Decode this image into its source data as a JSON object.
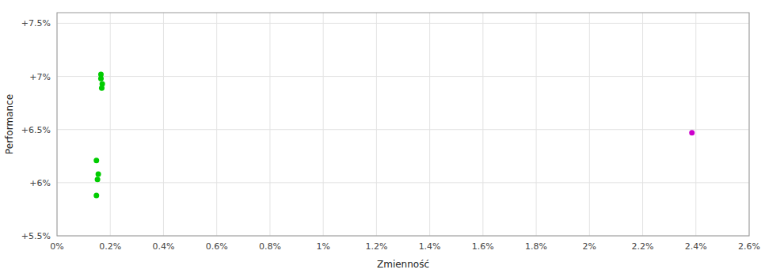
{
  "chart_data": {
    "type": "scatter",
    "xlabel": "Zmienność",
    "ylabel": "Performance",
    "xlim": [
      0.0,
      0.026
    ],
    "ylim": [
      0.055,
      0.076
    ],
    "xticks": [
      {
        "value": 0.0,
        "label": "0%"
      },
      {
        "value": 0.002,
        "label": "0.2%"
      },
      {
        "value": 0.004,
        "label": "0.4%"
      },
      {
        "value": 0.006,
        "label": "0.6%"
      },
      {
        "value": 0.008,
        "label": "0.8%"
      },
      {
        "value": 0.01,
        "label": "1%"
      },
      {
        "value": 0.012,
        "label": "1.2%"
      },
      {
        "value": 0.014,
        "label": "1.4%"
      },
      {
        "value": 0.016,
        "label": "1.6%"
      },
      {
        "value": 0.018,
        "label": "1.8%"
      },
      {
        "value": 0.02,
        "label": "2%"
      },
      {
        "value": 0.022,
        "label": "2.2%"
      },
      {
        "value": 0.024,
        "label": "2.4%"
      },
      {
        "value": 0.026,
        "label": "2.6%"
      }
    ],
    "yticks": [
      {
        "value": 0.055,
        "label": "+5.5%"
      },
      {
        "value": 0.06,
        "label": "+6%"
      },
      {
        "value": 0.065,
        "label": "+6.5%"
      },
      {
        "value": 0.07,
        "label": "+7%"
      },
      {
        "value": 0.075,
        "label": "+7.5%"
      }
    ],
    "grid": true,
    "series": [
      {
        "color": "#00cc00",
        "x": [
          0.00165,
          0.00165,
          0.0017,
          0.00168,
          0.00148,
          0.00155,
          0.00152,
          0.00148
        ],
        "values": [
          0.0702,
          0.0698,
          0.0693,
          0.0689,
          0.0621,
          0.0608,
          0.0603,
          0.0588
        ]
      },
      {
        "color": "#cc00cc",
        "x": [
          0.02385
        ],
        "values": [
          0.0647
        ]
      }
    ]
  }
}
